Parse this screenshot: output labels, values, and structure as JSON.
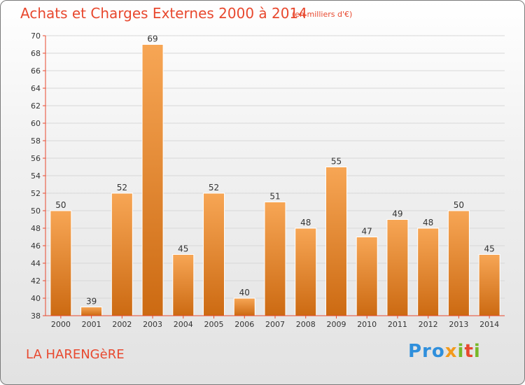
{
  "title": "Achats et Charges Externes 2000 à 2014",
  "subtitle": "(en milliers d'€)",
  "place": "LA HARENGèRE",
  "logo": {
    "p1": "Pro",
    "p2": "x",
    "p3": "i",
    "p4": "t",
    "p5": "i"
  },
  "colors": {
    "bar_light": "#f7a655",
    "bar_dark": "#cc6a12",
    "title": "#e8482e",
    "axis": "#e8482e",
    "grid": "#d7d7d7"
  },
  "chart_data": {
    "type": "bar",
    "categories": [
      "2000",
      "2001",
      "2002",
      "2003",
      "2004",
      "2005",
      "2006",
      "2007",
      "2008",
      "2009",
      "2010",
      "2011",
      "2012",
      "2013",
      "2014"
    ],
    "values": [
      50,
      39,
      52,
      69,
      45,
      52,
      40,
      51,
      48,
      55,
      47,
      49,
      48,
      50,
      45
    ],
    "title": "Achats et Charges Externes 2000 à 2014",
    "xlabel": "",
    "ylabel": "",
    "ylim": [
      38,
      70
    ],
    "yticks": [
      38,
      40,
      42,
      44,
      46,
      48,
      50,
      52,
      54,
      56,
      58,
      60,
      62,
      64,
      66,
      68,
      70
    ],
    "grid": true,
    "legend": "none"
  }
}
